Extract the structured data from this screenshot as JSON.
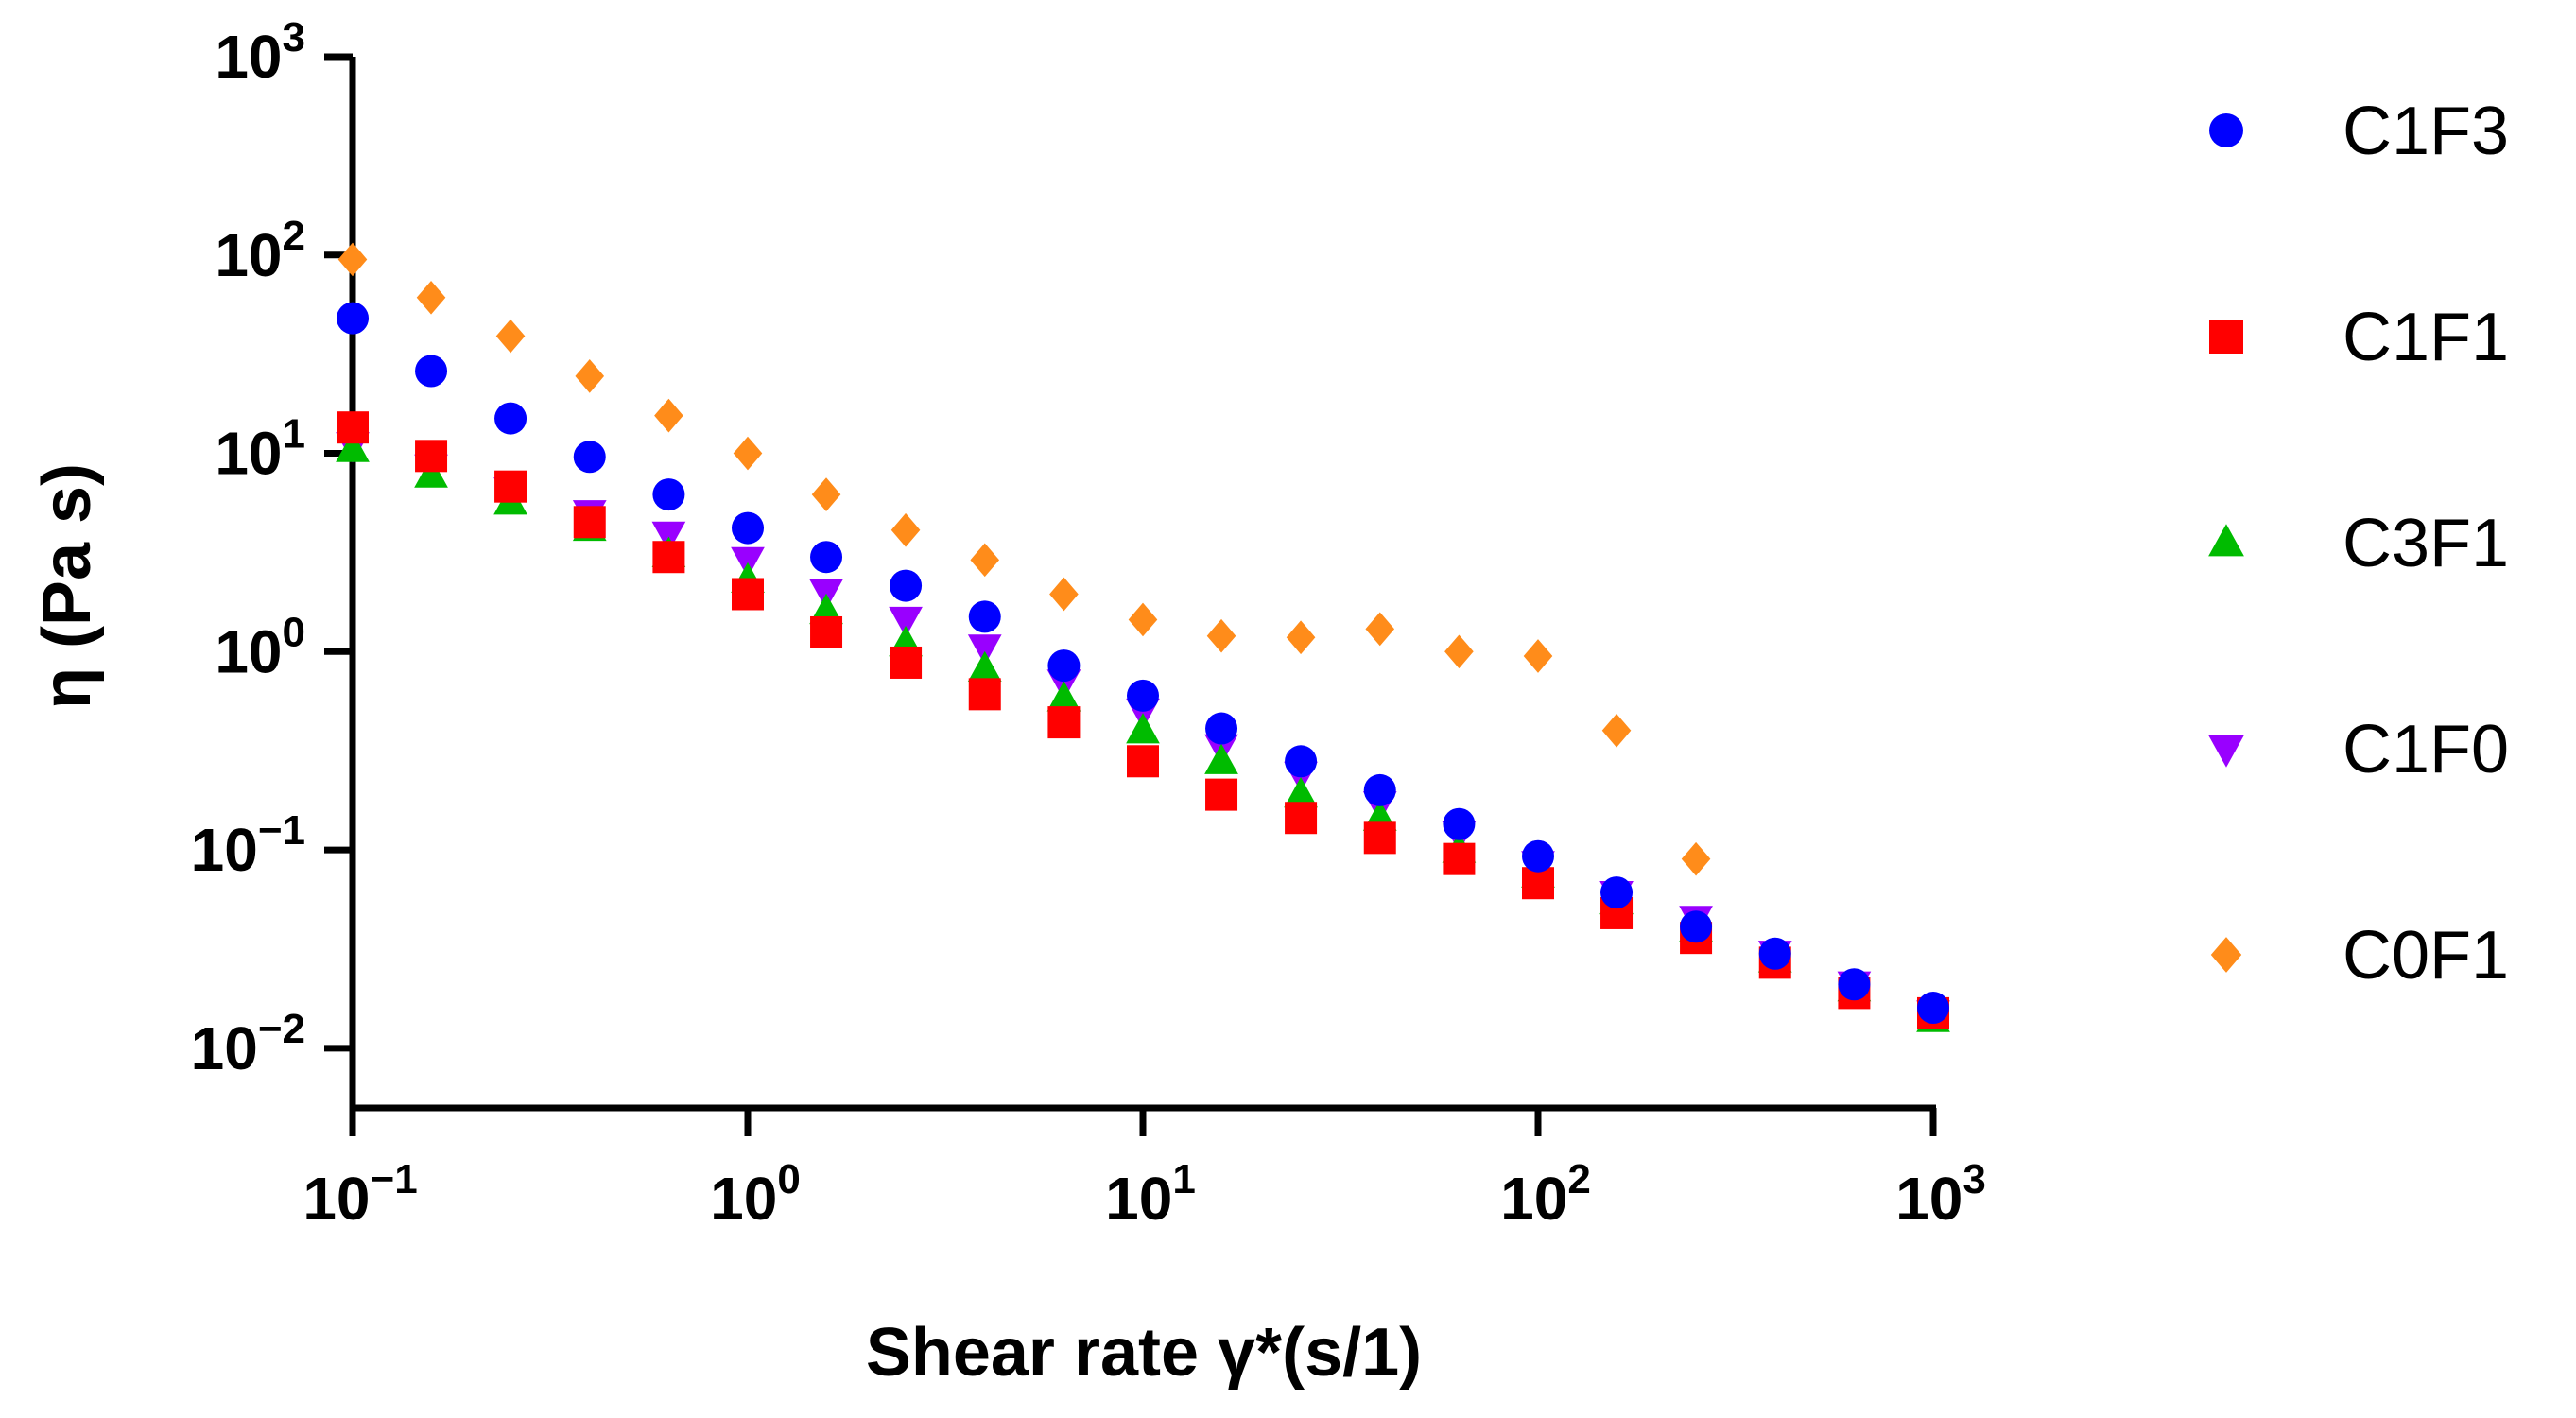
{
  "chart_data": {
    "type": "scatter",
    "title": "",
    "xlabel": "Shear rate γ*(s/1)",
    "ylabel": "η (Pa s)",
    "xscale": "log",
    "yscale": "log",
    "xlim": [
      0.1,
      1000
    ],
    "ylim": [
      0.005,
      1000
    ],
    "x_ticks": [
      {
        "value": 0.1,
        "base": "10",
        "exp": "−1"
      },
      {
        "value": 1,
        "base": "10",
        "exp": "0"
      },
      {
        "value": 10,
        "base": "10",
        "exp": "1"
      },
      {
        "value": 100,
        "base": "10",
        "exp": "2"
      },
      {
        "value": 1000,
        "base": "10",
        "exp": "3"
      }
    ],
    "y_ticks": [
      {
        "value": 0.01,
        "base": "10",
        "exp": "−2"
      },
      {
        "value": 0.1,
        "base": "10",
        "exp": "−1"
      },
      {
        "value": 1,
        "base": "10",
        "exp": "0"
      },
      {
        "value": 10,
        "base": "10",
        "exp": "1"
      },
      {
        "value": 100,
        "base": "10",
        "exp": "2"
      },
      {
        "value": 1000,
        "base": "10",
        "exp": "3"
      }
    ],
    "legend_position": "right",
    "x": [
      0.1,
      0.158,
      0.251,
      0.398,
      0.631,
      1,
      1.58,
      2.51,
      3.98,
      6.31,
      10,
      15.8,
      25.1,
      39.8,
      63.1,
      100,
      158,
      251,
      398,
      631,
      1000
    ],
    "series": [
      {
        "name": "C1F3",
        "marker": "circle",
        "color": "#0000ff",
        "values": [
          48,
          26,
          15,
          9.6,
          6.2,
          4.2,
          3.0,
          2.15,
          1.5,
          0.85,
          0.6,
          0.41,
          0.28,
          0.2,
          0.135,
          0.093,
          0.061,
          0.041,
          0.03,
          0.021,
          0.016
        ]
      },
      {
        "name": "C1F1",
        "marker": "square",
        "color": "#ff0000",
        "values": [
          13.5,
          9.7,
          6.8,
          4.5,
          3.0,
          1.95,
          1.25,
          0.88,
          0.61,
          0.44,
          0.28,
          0.19,
          0.145,
          0.115,
          0.09,
          0.068,
          0.048,
          0.036,
          0.027,
          0.019,
          0.015
        ]
      },
      {
        "name": "C3F1",
        "marker": "triangle-up",
        "color": "#00bb00",
        "values": [
          10.5,
          7.8,
          5.7,
          4.2,
          3.1,
          2.3,
          1.6,
          1.1,
          0.82,
          0.58,
          0.4,
          0.28,
          0.19,
          0.145,
          0.1,
          0.075,
          0.055,
          0.04,
          0.028,
          0.02,
          0.014
        ]
      },
      {
        "name": "C1F0",
        "marker": "triangle-down",
        "color": "#9900ff",
        "values": [
          11,
          8.5,
          6.5,
          5.0,
          3.9,
          2.9,
          2.0,
          1.45,
          1.05,
          0.7,
          0.5,
          0.33,
          0.24,
          0.17,
          0.12,
          0.085,
          0.06,
          0.045,
          0.03,
          0.021,
          0.015
        ]
      },
      {
        "name": "C0F1",
        "marker": "diamond",
        "color": "#ff8c1a",
        "values": [
          95,
          61,
          39,
          24.5,
          15.5,
          10,
          6.2,
          4.1,
          2.9,
          1.95,
          1.45,
          1.2,
          1.18,
          1.3,
          1.0,
          0.95,
          0.4,
          0.09,
          null,
          null,
          null
        ]
      }
    ]
  }
}
